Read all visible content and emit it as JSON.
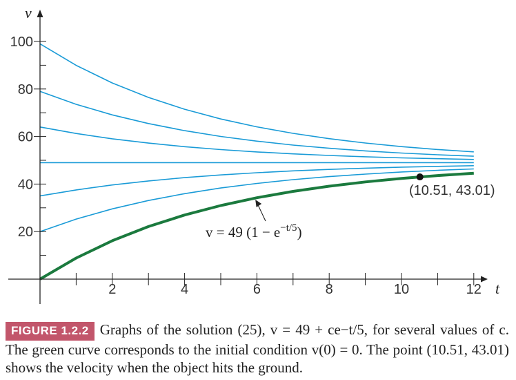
{
  "chart_data": {
    "type": "line",
    "xlabel": "t",
    "ylabel": "v",
    "xlim": [
      0,
      12
    ],
    "ylim": [
      0,
      100
    ],
    "x_ticks": [
      "2",
      "4",
      "6",
      "8",
      "10",
      "12"
    ],
    "y_ticks": [
      "20",
      "40",
      "60",
      "80",
      "100"
    ],
    "grid": false,
    "series": [
      {
        "c": 50,
        "color": "#1a9bd7",
        "points": [
          [
            0,
            99
          ],
          [
            1,
            89.94
          ],
          [
            2,
            82.52
          ],
          [
            3,
            76.44
          ],
          [
            4,
            71.47
          ],
          [
            5,
            67.39
          ],
          [
            6,
            64.06
          ],
          [
            7,
            61.33
          ],
          [
            8,
            59.1
          ],
          [
            9,
            57.26
          ],
          [
            10,
            55.77
          ],
          [
            11,
            54.54
          ],
          [
            12,
            53.54
          ]
        ]
      },
      {
        "c": 30,
        "color": "#1a9bd7",
        "points": [
          [
            0,
            79
          ],
          [
            1,
            73.56
          ],
          [
            2,
            69.11
          ],
          [
            3,
            65.46
          ],
          [
            4,
            62.48
          ],
          [
            5,
            60.04
          ],
          [
            6,
            58.04
          ],
          [
            7,
            56.4
          ],
          [
            8,
            55.06
          ],
          [
            9,
            53.96
          ],
          [
            10,
            53.06
          ],
          [
            11,
            52.32
          ],
          [
            12,
            51.72
          ]
        ]
      },
      {
        "c": 15,
        "color": "#1a9bd7",
        "points": [
          [
            0,
            64
          ],
          [
            1,
            61.28
          ],
          [
            2,
            59.05
          ],
          [
            3,
            57.23
          ],
          [
            4,
            55.74
          ],
          [
            5,
            54.52
          ],
          [
            6,
            53.52
          ],
          [
            7,
            52.7
          ],
          [
            8,
            52.03
          ],
          [
            9,
            51.48
          ],
          [
            10,
            51.03
          ],
          [
            11,
            50.66
          ],
          [
            12,
            50.36
          ]
        ]
      },
      {
        "c": 0,
        "color": "#1a9bd7",
        "points": [
          [
            0,
            49
          ],
          [
            12,
            49
          ]
        ]
      },
      {
        "c": -14,
        "color": "#1a9bd7",
        "points": [
          [
            0,
            35
          ],
          [
            1,
            37.54
          ],
          [
            2,
            39.62
          ],
          [
            3,
            41.32
          ],
          [
            4,
            42.71
          ],
          [
            5,
            43.85
          ],
          [
            6,
            44.78
          ],
          [
            7,
            45.55
          ],
          [
            8,
            46.17
          ],
          [
            9,
            46.69
          ],
          [
            10,
            47.11
          ],
          [
            11,
            47.45
          ],
          [
            12,
            47.73
          ]
        ]
      },
      {
        "c": -29,
        "color": "#1a9bd7",
        "points": [
          [
            0,
            20
          ],
          [
            1,
            25.26
          ],
          [
            2,
            29.56
          ],
          [
            3,
            33.08
          ],
          [
            4,
            35.97
          ],
          [
            5,
            38.33
          ],
          [
            6,
            40.27
          ],
          [
            7,
            41.85
          ],
          [
            8,
            43.15
          ],
          [
            9,
            44.2
          ],
          [
            10,
            45.08
          ],
          [
            11,
            45.79
          ],
          [
            12,
            46.37
          ]
        ]
      },
      {
        "c": -49,
        "color": "#1b7a3e",
        "points": [
          [
            0,
            0
          ],
          [
            1,
            8.88
          ],
          [
            2,
            16.15
          ],
          [
            3,
            22.11
          ],
          [
            4,
            26.98
          ],
          [
            5,
            30.97
          ],
          [
            6,
            34.24
          ],
          [
            7,
            36.92
          ],
          [
            8,
            39.11
          ],
          [
            9,
            40.91
          ],
          [
            10,
            42.37
          ],
          [
            11,
            43.58
          ],
          [
            12,
            44.56
          ]
        ]
      }
    ],
    "highlight_point": {
      "x": 10.51,
      "y": 43.01,
      "label": "(10.51, 43.01)"
    },
    "annotation": {
      "text": "v = 49 (1 − e",
      "exponent": "−t/5",
      "close": ")",
      "target": [
        5.9,
        34.0
      ]
    }
  },
  "caption": {
    "figure_label": "FIGURE 1.2.2",
    "text": "Graphs of the solution (25), v = 49 + ce−t/5, for several values of c. The green curve corresponds to the initial condition v(0) = 0. The point (10.51, 43.01) shows the velocity when the object hits the ground."
  }
}
